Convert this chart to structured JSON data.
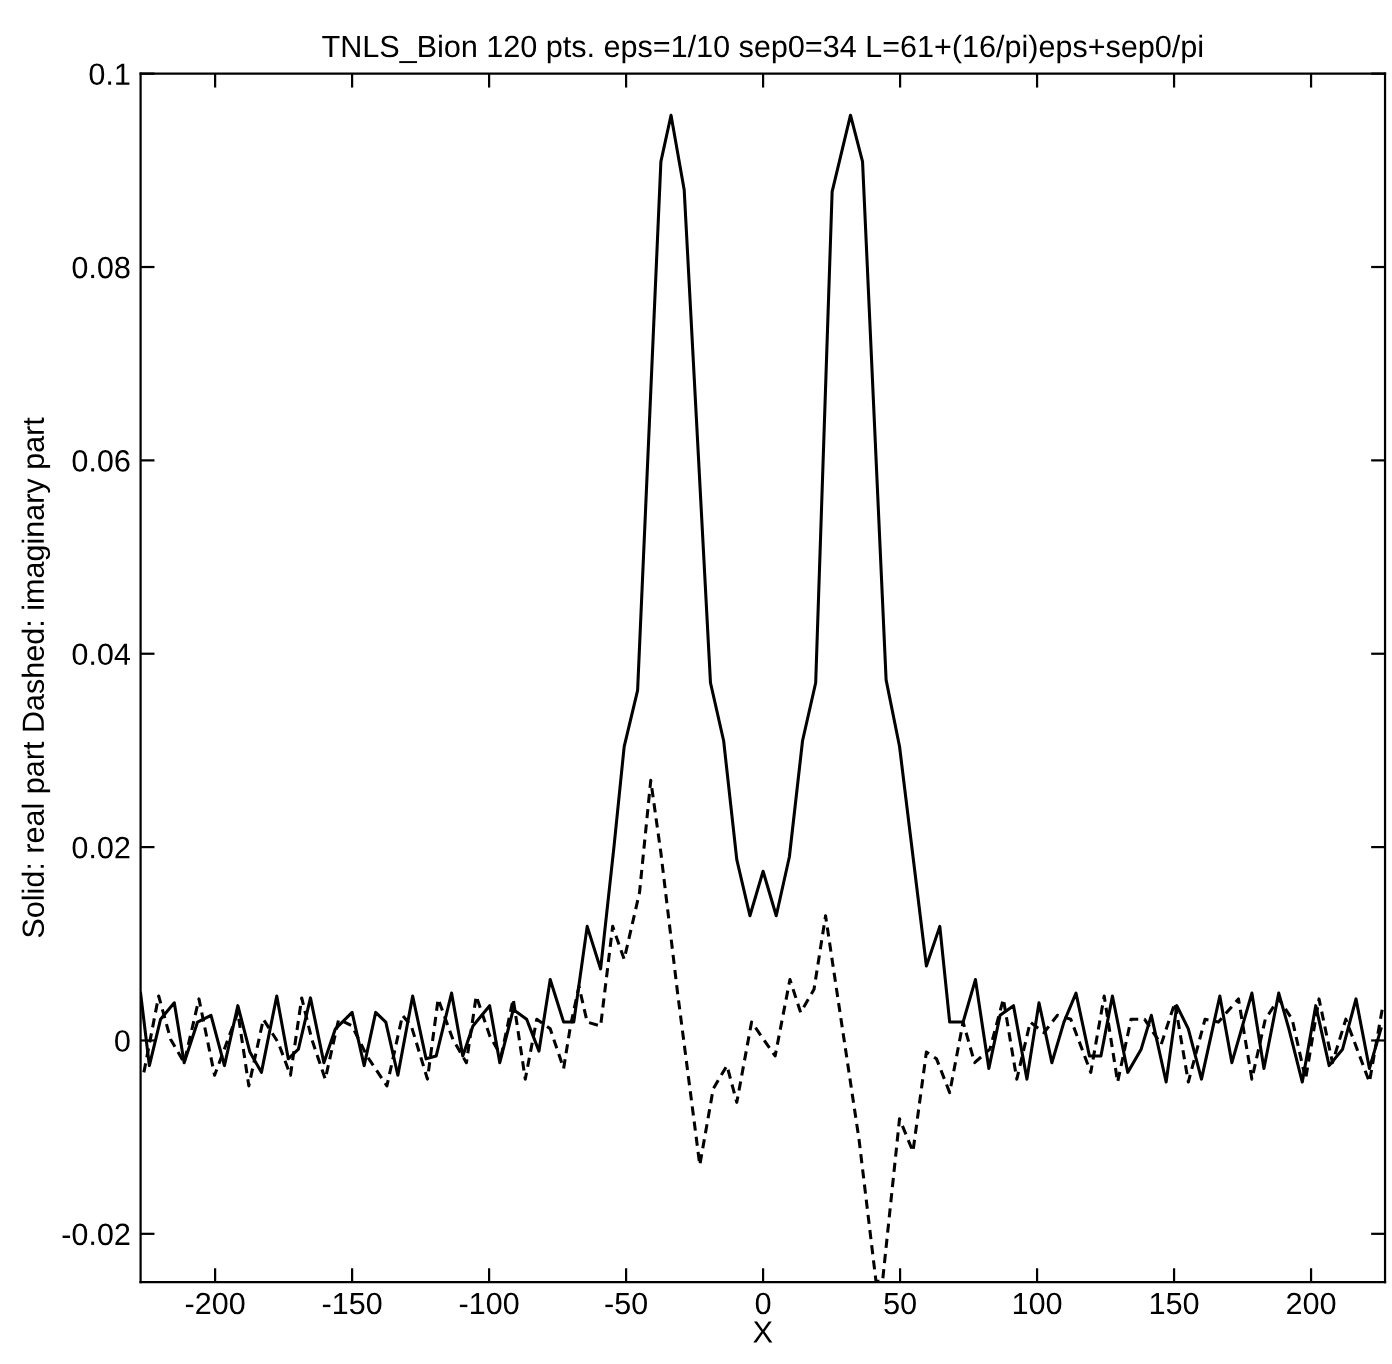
{
  "chart_data": {
    "type": "line",
    "title": "TNLS_Bion 120 pts. eps=1/10 sep0=34 L=61+(16/pi)eps+sep0/pi",
    "xlabel": "X",
    "ylabel": "Solid: real part Dashed: imaginary part",
    "xlim": [
      -227.2,
      227
    ],
    "ylim": [
      -0.025,
      0.1
    ],
    "xticks": [
      -200,
      -150,
      -100,
      -50,
      0,
      50,
      100,
      150,
      200
    ],
    "yticks": [
      -0.02,
      0,
      0.02,
      0.04,
      0.06,
      0.08,
      0.1
    ],
    "grid": false,
    "series": [
      {
        "color": "#000000",
        "line_style": "solid",
        "x": [
          -227.2,
          -224.0,
          -219.9,
          -214.9,
          -211.3,
          -206.4,
          -201.5,
          -196.6,
          -191.7,
          -187.3,
          -183.1,
          -177.5,
          -173.3,
          -169.6,
          -165.2,
          -160.3,
          -156.1,
          -150.0,
          -145.6,
          -141.4,
          -137.7,
          -133.3,
          -127.9,
          -123.0,
          -119.3,
          -113.7,
          -109.6,
          -105.9,
          -99.8,
          -96.1,
          -91.2,
          -86.3,
          -81.8,
          -77.7,
          -72.8,
          -69.1,
          -64.2,
          -59.3,
          -54.4,
          -50.7,
          -45.8,
          -37.3,
          -33.6,
          -28.8,
          -19.2,
          -14.4,
          -9.6,
          -4.8,
          0,
          4.8,
          9.6,
          14.4,
          19.2,
          25.2,
          31.9,
          36.3,
          44.9,
          49.8,
          59.6,
          64.5,
          68.1,
          73.0,
          77.5,
          82.4,
          86.5,
          91.4,
          96.3,
          100.7,
          105.4,
          109.8,
          114.2,
          119.1,
          123.3,
          127.5,
          133.1,
          138.0,
          141.7,
          147.1,
          151.0,
          155.2,
          160.0,
          166.7,
          171.1,
          178.4,
          182.8,
          188.2,
          191.9,
          196.8,
          201.7,
          206.6,
          211.5,
          216.4,
          221.3,
          225.5
        ],
        "values": [
          0.0049,
          -0.0026,
          0.0022,
          0.0039,
          -0.0023,
          0.0019,
          0.0026,
          -0.0026,
          0.0036,
          -0.0012,
          -0.0033,
          0.0046,
          -0.0019,
          -0.0009,
          0.0044,
          -0.0023,
          0.0012,
          0.0029,
          -0.0026,
          0.0029,
          0.0019,
          -0.0036,
          0.0046,
          -0.0019,
          -0.0016,
          0.0049,
          -0.0016,
          0.0015,
          0.0036,
          -0.0023,
          0.0032,
          0.0022,
          -0.0011,
          0.0063,
          0.0019,
          0.0019,
          0.0118,
          0.0074,
          0.0201,
          0.0304,
          0.0362,
          0.0909,
          0.0957,
          0.088,
          0.037,
          0.031,
          0.0187,
          0.0129,
          0.0175,
          0.0129,
          0.019,
          0.031,
          0.037,
          0.0878,
          0.0957,
          0.0909,
          0.0373,
          0.0304,
          0.0077,
          0.0118,
          0.0019,
          0.0019,
          0.0063,
          -0.0029,
          0.0026,
          0.0036,
          -0.004,
          0.0039,
          -0.0023,
          0.0019,
          0.0049,
          -0.0016,
          -0.0016,
          0.0046,
          -0.0033,
          -0.0009,
          0.0026,
          -0.0043,
          0.0036,
          0.0012,
          -0.004,
          0.0046,
          -0.0023,
          0.0049,
          -0.0029,
          0.0049,
          0.0012,
          -0.0043,
          0.0036,
          -0.0026,
          -0.0009,
          0.0043,
          -0.0029,
          0.0012
        ]
      },
      {
        "color": "#000000",
        "line_style": "dashed",
        "x": [
          -226.0,
          -220.6,
          -216.2,
          -211.3,
          -205.9,
          -200.2,
          -196.1,
          -191.7,
          -187.7,
          -182.4,
          -177.0,
          -172.5,
          -168.4,
          -164.7,
          -159.8,
          -154.9,
          -150.0,
          -144.6,
          -137.3,
          -131.6,
          -128.4,
          -122.5,
          -118.6,
          -113.2,
          -108.3,
          -104.7,
          -99.8,
          -95.6,
          -91.2,
          -86.8,
          -82.6,
          -77.7,
          -72.8,
          -70.3,
          -67.2,
          -64.2,
          -59.3,
          -54.9,
          -50.7,
          -45.1,
          -41.0,
          -37.3,
          -31.2,
          -23.1,
          -18.2,
          -13.2,
          -9.6,
          -4.2,
          4.4,
          9.8,
          13.7,
          18.6,
          22.8,
          27.7,
          35.0,
          41.2,
          43.6,
          49.8,
          54.7,
          59.6,
          63.3,
          68.1,
          73.0,
          77.2,
          82.8,
          87.7,
          92.6,
          97.5,
          102.5,
          107.4,
          112.3,
          119.6,
          124.5,
          129.4,
          134.3,
          139.2,
          145.3,
          150.3,
          155.2,
          161.3,
          166.2,
          173.5,
          178.4,
          183.3,
          188.2,
          193.1,
          198.0,
          202.9,
          207.8,
          212.7,
          221.3,
          226.2
        ],
        "values": [
          -0.0033,
          0.0046,
          0.0001,
          -0.0023,
          0.0043,
          -0.0036,
          -0.0005,
          0.0029,
          -0.0047,
          0.0022,
          -0.0002,
          -0.0036,
          0.0044,
          0.0001,
          -0.004,
          0.0022,
          0.0015,
          -0.0016,
          -0.0047,
          0.0026,
          0.0015,
          -0.004,
          0.0043,
          0.0001,
          -0.0023,
          0.0046,
          0.0005,
          -0.0016,
          0.0043,
          -0.004,
          0.0022,
          0.0012,
          -0.0029,
          0.0015,
          0.0056,
          0.0019,
          0.0015,
          0.0118,
          0.0084,
          0.0153,
          0.0269,
          0.0194,
          0.0049,
          -0.0129,
          -0.005,
          -0.0026,
          -0.0064,
          0.0019,
          -0.0016,
          0.0063,
          0.0029,
          0.0053,
          0.0129,
          0.0036,
          -0.0102,
          -0.0249,
          -0.0249,
          -0.0081,
          -0.0115,
          -0.0012,
          -0.0019,
          -0.0054,
          0.0019,
          -0.0023,
          -0.0009,
          0.0043,
          -0.004,
          0.0019,
          0.0008,
          0.0026,
          0.0022,
          -0.0033,
          0.0046,
          -0.0043,
          0.0022,
          0.0022,
          -0.0004,
          0.0039,
          -0.0043,
          0.0022,
          0.0019,
          0.0043,
          -0.004,
          0.0022,
          0.0043,
          0.0022,
          -0.004,
          0.0043,
          -0.0023,
          0.0022,
          -0.0043,
          0.0036
        ]
      }
    ]
  }
}
